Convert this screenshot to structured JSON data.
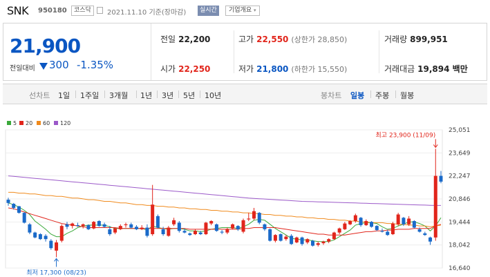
{
  "header": {
    "name": "SNK",
    "code": "950180",
    "market": "코스닥",
    "date": "2021.11.10",
    "date_suffix": "기준(장마감)",
    "realtime": "실시간",
    "company_info": "기업개요"
  },
  "quote": {
    "price": "21,900",
    "change_label": "전일대비",
    "change": "300",
    "change_pct": "-1.35%",
    "prev_label": "전일",
    "prev": "22,200",
    "high_label": "고가",
    "high": "22,550",
    "upper_limit": "(상한가 28,850)",
    "volume_label": "거래량",
    "volume": "899,951",
    "open_label": "시가",
    "open": "22,250",
    "low_label": "저가",
    "low": "21,800",
    "lower_limit": "(하한가 15,550)",
    "amount_label": "거래대금",
    "amount": "19,894 백만"
  },
  "tabs": {
    "line_label": "선차트",
    "line_tabs": [
      "1일",
      "1주일",
      "3개월",
      "1년",
      "3년",
      "5년",
      "10년"
    ],
    "candle_label": "봉차트",
    "candle_tabs": [
      "일봉",
      "주봉",
      "월봉"
    ],
    "candle_active": "일봉"
  },
  "chart_data": {
    "type": "candlestick",
    "y_ticks": [
      "25,051",
      "23,649",
      "22,247",
      "20,846",
      "19,444",
      "18,042",
      "16,640"
    ],
    "ylim": [
      16640,
      25051
    ],
    "grid": true,
    "legend": [
      {
        "name": "5",
        "color": "#3aa93a"
      },
      {
        "name": "20",
        "color": "#e1251b"
      },
      {
        "name": "60",
        "color": "#f08a1c"
      },
      {
        "name": "120",
        "color": "#9b59c9"
      }
    ],
    "high_note": "최고 23,900 (11/09)",
    "low_note": "최저 17,300 (08/23)",
    "up_color": "#e1251b",
    "down_color": "#1a6ac9",
    "candles": [
      [
        20800,
        20920,
        20430,
        20600
      ],
      [
        20550,
        20600,
        20200,
        20300
      ],
      [
        20400,
        20420,
        19950,
        20000
      ],
      [
        20000,
        20050,
        19350,
        19400
      ],
      [
        19300,
        19380,
        18700,
        18800
      ],
      [
        18800,
        18850,
        18450,
        18500
      ],
      [
        18700,
        18760,
        18350,
        18400
      ],
      [
        18600,
        18700,
        18250,
        18400
      ],
      [
        18300,
        18400,
        17750,
        17850
      ],
      [
        17700,
        18350,
        17300,
        18200
      ],
      [
        18300,
        19300,
        18200,
        19200
      ],
      [
        19300,
        19450,
        19000,
        19150
      ],
      [
        19200,
        19400,
        19050,
        19350
      ],
      [
        19250,
        19400,
        19150,
        19200
      ],
      [
        19200,
        19350,
        19050,
        19300
      ],
      [
        19250,
        19300,
        18950,
        19000
      ],
      [
        19050,
        19500,
        19000,
        19450
      ],
      [
        19500,
        19550,
        19150,
        19200
      ],
      [
        19300,
        19400,
        19100,
        19150
      ],
      [
        19000,
        19200,
        18600,
        18700
      ],
      [
        18800,
        19100,
        18700,
        19050
      ],
      [
        19000,
        19300,
        18950,
        19200
      ],
      [
        19250,
        19400,
        19100,
        19300
      ],
      [
        19300,
        19400,
        19050,
        19100
      ],
      [
        19150,
        19250,
        18950,
        19000
      ],
      [
        19000,
        19250,
        18950,
        19100
      ],
      [
        19100,
        19300,
        18500,
        18600
      ],
      [
        18700,
        21700,
        18600,
        20500
      ],
      [
        19800,
        19900,
        19050,
        19100
      ],
      [
        19000,
        19150,
        18600,
        18700
      ],
      [
        18600,
        19200,
        18550,
        19100
      ],
      [
        19300,
        19700,
        19200,
        19550
      ],
      [
        19400,
        19500,
        18800,
        18900
      ],
      [
        18900,
        19050,
        18750,
        18800
      ],
      [
        18750,
        18800,
        18600,
        18650
      ],
      [
        18700,
        19000,
        18650,
        18900
      ],
      [
        18800,
        18900,
        18650,
        18700
      ],
      [
        18700,
        19450,
        18650,
        19400
      ],
      [
        19350,
        19550,
        19250,
        19500
      ],
      [
        19300,
        19350,
        18850,
        18900
      ],
      [
        18850,
        18950,
        18700,
        18800
      ],
      [
        18800,
        19100,
        18700,
        19000
      ],
      [
        19050,
        19350,
        19000,
        19300
      ],
      [
        19200,
        19250,
        18900,
        19000
      ],
      [
        18850,
        19650,
        18750,
        19550
      ],
      [
        19600,
        20000,
        19500,
        19650
      ],
      [
        19650,
        20300,
        19550,
        20100
      ],
      [
        20000,
        20050,
        19300,
        19400
      ],
      [
        19300,
        19350,
        18900,
        19000
      ],
      [
        19000,
        19050,
        18250,
        18300
      ],
      [
        18300,
        18700,
        18200,
        18650
      ],
      [
        18700,
        18750,
        18250,
        18300
      ],
      [
        18400,
        18650,
        18300,
        18550
      ],
      [
        18600,
        18700,
        18050,
        18100
      ],
      [
        18200,
        18550,
        18150,
        18500
      ],
      [
        18500,
        18550,
        18000,
        18100
      ],
      [
        18200,
        18450,
        18100,
        18400
      ],
      [
        18300,
        18350,
        17950,
        18000
      ],
      [
        18050,
        18250,
        17950,
        18150
      ],
      [
        18150,
        18300,
        18050,
        18250
      ],
      [
        18250,
        18450,
        18150,
        18400
      ],
      [
        18400,
        18850,
        18350,
        18800
      ],
      [
        18800,
        19100,
        18700,
        19050
      ],
      [
        19000,
        19450,
        18950,
        19350
      ],
      [
        19300,
        19550,
        19250,
        19500
      ],
      [
        19500,
        19950,
        19400,
        19850
      ],
      [
        19700,
        19750,
        19150,
        19250
      ],
      [
        19250,
        19600,
        19200,
        19500
      ],
      [
        19450,
        19500,
        19100,
        19150
      ],
      [
        19200,
        19250,
        18900,
        18950
      ],
      [
        18900,
        19050,
        18800,
        18850
      ],
      [
        18850,
        18950,
        18600,
        18650
      ],
      [
        18700,
        19450,
        18650,
        19350
      ],
      [
        19300,
        20000,
        19200,
        19900
      ],
      [
        19700,
        19750,
        19200,
        19300
      ],
      [
        19300,
        19800,
        19200,
        19650
      ],
      [
        19500,
        19550,
        19050,
        19100
      ],
      [
        19000,
        19100,
        18800,
        18850
      ],
      [
        18750,
        18850,
        18600,
        18650
      ],
      [
        18500,
        18550,
        18050,
        18250
      ],
      [
        18500,
        23900,
        18300,
        22250
      ],
      [
        22250,
        22550,
        21800,
        21900
      ]
    ],
    "ma": {
      "ma5": [
        20600,
        20500,
        20350,
        20150,
        19900,
        19500,
        19250,
        19000,
        18700,
        18550,
        18550,
        18750,
        18900,
        19100,
        19200,
        19250,
        19250,
        19250,
        19250,
        19150,
        19050,
        19050,
        19050,
        19050,
        19050,
        19050,
        18950,
        19200,
        19100,
        19050,
        19000,
        19050,
        19050,
        19000,
        18900,
        18900,
        18850,
        18900,
        19000,
        19050,
        19100,
        19100,
        19100,
        19050,
        19150,
        19300,
        19550,
        19600,
        19550,
        19300,
        19050,
        18850,
        18650,
        18450,
        18400,
        18350,
        18350,
        18300,
        18250,
        18250,
        18250,
        18350,
        18550,
        18750,
        18950,
        19250,
        19350,
        19400,
        19400,
        19350,
        19150,
        19000,
        19050,
        19200,
        19300,
        19450,
        19450,
        19350,
        19200,
        18900,
        19200,
        19700
      ],
      "ma20": [
        20300,
        20250,
        20150,
        20050,
        19950,
        19850,
        19750,
        19650,
        19550,
        19450,
        19350,
        19300,
        19250,
        19200,
        19150,
        19100,
        19100,
        19100,
        19100,
        19100,
        19100,
        19050,
        19050,
        19050,
        19050,
        19050,
        19050,
        19050,
        19050,
        19050,
        19050,
        19050,
        19050,
        19050,
        19000,
        19000,
        19000,
        19000,
        19000,
        19000,
        19000,
        19000,
        19000,
        19000,
        19050,
        19050,
        19100,
        19100,
        19100,
        19100,
        19100,
        19050,
        19000,
        18950,
        18900,
        18850,
        18800,
        18750,
        18700,
        18700,
        18650,
        18650,
        18650,
        18650,
        18700,
        18750,
        18800,
        18850,
        18850,
        18900,
        18900,
        18950,
        18950,
        19000,
        19000,
        19000,
        19050,
        19050,
        19050,
        19050,
        19200,
        19300
      ],
      "ma60": [
        21250,
        21250,
        21200,
        21200,
        21150,
        21150,
        21100,
        21050,
        21050,
        21000,
        21000,
        20950,
        20900,
        20900,
        20850,
        20800,
        20800,
        20750,
        20700,
        20700,
        20650,
        20600,
        20600,
        20550,
        20500,
        20500,
        20450,
        20450,
        20400,
        20400,
        20350,
        20350,
        20300,
        20300,
        20250,
        20250,
        20200,
        20200,
        20150,
        20150,
        20100,
        20100,
        20050,
        20050,
        20000,
        20000,
        19950,
        19950,
        19900,
        19900,
        19850,
        19850,
        19800,
        19800,
        19750,
        19750,
        19700,
        19700,
        19650,
        19650,
        19600,
        19600,
        19550,
        19550,
        19500,
        19500,
        19450,
        19450,
        19400,
        19400,
        19400,
        19350,
        19350,
        19300,
        19300,
        19250,
        19250,
        19200,
        19200,
        19150,
        19200,
        19250
      ],
      "ma120": [
        22250,
        22220,
        22190,
        22160,
        22130,
        22100,
        22070,
        22040,
        22010,
        21980,
        21950,
        21920,
        21890,
        21860,
        21830,
        21800,
        21770,
        21740,
        21710,
        21680,
        21650,
        21620,
        21590,
        21560,
        21530,
        21500,
        21470,
        21440,
        21410,
        21380,
        21350,
        21320,
        21290,
        21260,
        21230,
        21200,
        21170,
        21140,
        21110,
        21080,
        21050,
        21020,
        20990,
        20960,
        20930,
        20900,
        20880,
        20860,
        20840,
        20820,
        20800,
        20780,
        20760,
        20740,
        20720,
        20700,
        20690,
        20680,
        20670,
        20660,
        20650,
        20640,
        20630,
        20620,
        20610,
        20600,
        20590,
        20580,
        20570,
        20560,
        20550,
        20540,
        20530,
        20520,
        20510,
        20500,
        20490,
        20480,
        20470,
        20460,
        20450,
        20450
      ]
    }
  }
}
